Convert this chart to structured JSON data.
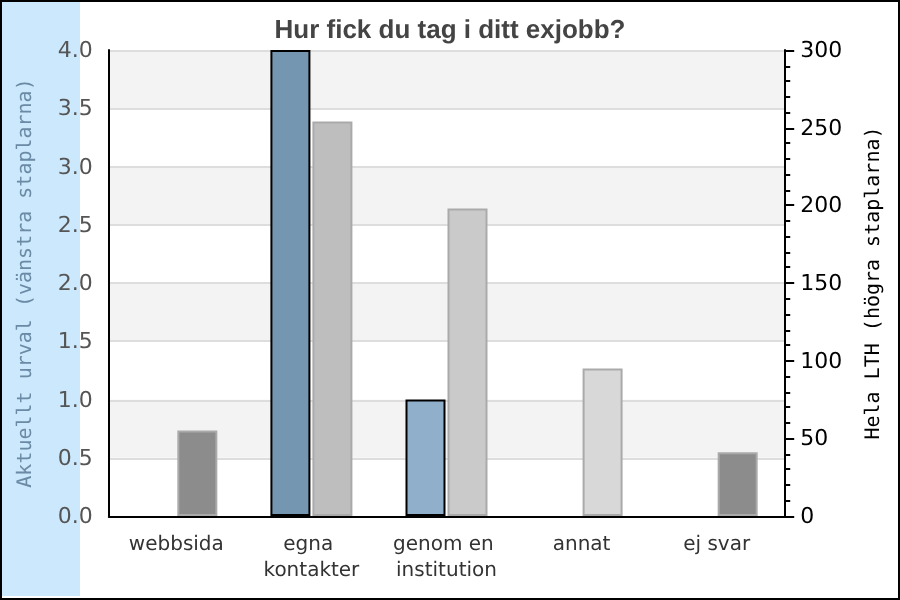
{
  "chart_data": {
    "type": "bar",
    "title": "Hur fick du tag i ditt exjobb?",
    "categories": [
      "webbsida",
      "egna kontakter",
      "genom en institution",
      "annat",
      "ej svar"
    ],
    "ylabel": "Aktuellt urval (vänstra staplarna)",
    "y2label": "Hela LTH (högra staplarna)",
    "series": [
      {
        "colors": [
          "#7496b0",
          "#7496b0",
          "#8fafcb",
          "#8fafcb",
          "#8fafcb"
        ],
        "values": [
          null,
          4,
          1,
          null,
          null
        ]
      },
      {
        "axis": "y2",
        "colors": [
          "#8c8c8c",
          "#bebebe",
          "#cacaca",
          "#d8d8d8",
          "#8c8c8c"
        ],
        "values": [
          55,
          254,
          198,
          95,
          41
        ]
      }
    ],
    "ylim": [
      0,
      4
    ],
    "yticks": [
      {
        "value": 0,
        "label": "0.0"
      },
      {
        "value": 0.5,
        "label": "0.5"
      },
      {
        "value": 1,
        "label": "1.0"
      },
      {
        "value": 1.5,
        "label": "1.5"
      },
      {
        "value": 2,
        "label": "2.0"
      },
      {
        "value": 2.5,
        "label": "2.5"
      },
      {
        "value": 3,
        "label": "3.0"
      },
      {
        "value": 3.5,
        "label": "3.5"
      },
      {
        "value": 4,
        "label": "4.0"
      }
    ],
    "y2lim": [
      0,
      300
    ],
    "y2ticks": [
      0,
      50,
      100,
      150,
      200,
      250,
      300
    ],
    "grid": "y"
  }
}
